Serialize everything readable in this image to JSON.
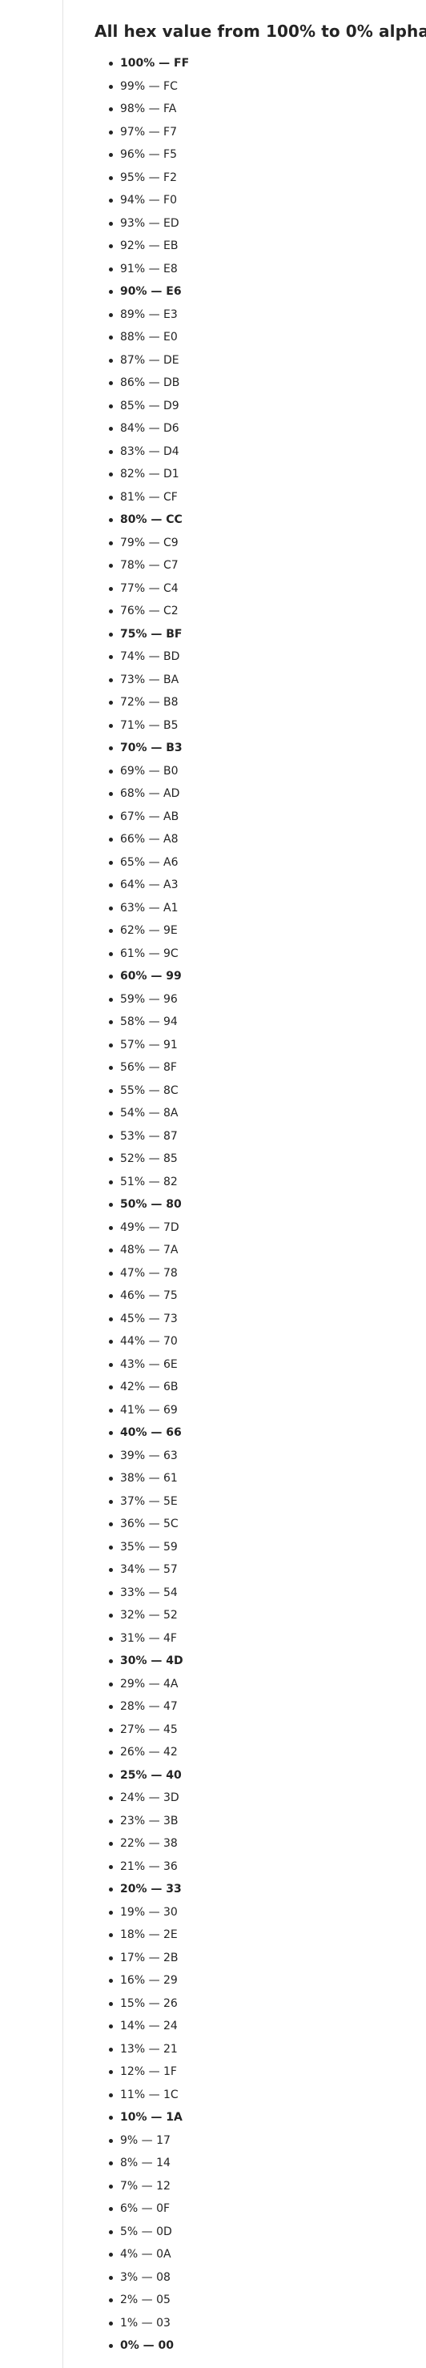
{
  "title": "All hex value from 100% to 0% alpha:",
  "items": [
    {
      "text": "100% — FF",
      "bold": true
    },
    {
      "text": "99% — FC",
      "bold": false
    },
    {
      "text": "98% — FA",
      "bold": false
    },
    {
      "text": "97% — F7",
      "bold": false
    },
    {
      "text": "96% — F5",
      "bold": false
    },
    {
      "text": "95% — F2",
      "bold": false
    },
    {
      "text": "94% — F0",
      "bold": false
    },
    {
      "text": "93% — ED",
      "bold": false
    },
    {
      "text": "92% — EB",
      "bold": false
    },
    {
      "text": "91% — E8",
      "bold": false
    },
    {
      "text": "90% — E6",
      "bold": true
    },
    {
      "text": "89% — E3",
      "bold": false
    },
    {
      "text": "88% — E0",
      "bold": false
    },
    {
      "text": "87% — DE",
      "bold": false
    },
    {
      "text": "86% — DB",
      "bold": false
    },
    {
      "text": "85% — D9",
      "bold": false
    },
    {
      "text": "84% — D6",
      "bold": false
    },
    {
      "text": "83% — D4",
      "bold": false
    },
    {
      "text": "82% — D1",
      "bold": false
    },
    {
      "text": "81% — CF",
      "bold": false
    },
    {
      "text": "80% — CC",
      "bold": true
    },
    {
      "text": "79% — C9",
      "bold": false
    },
    {
      "text": "78% — C7",
      "bold": false
    },
    {
      "text": "77% — C4",
      "bold": false
    },
    {
      "text": "76% — C2",
      "bold": false
    },
    {
      "text": "75% — BF",
      "bold": true
    },
    {
      "text": "74% — BD",
      "bold": false
    },
    {
      "text": "73% — BA",
      "bold": false
    },
    {
      "text": "72% — B8",
      "bold": false
    },
    {
      "text": "71% — B5",
      "bold": false
    },
    {
      "text": "70% — B3",
      "bold": true
    },
    {
      "text": "69% — B0",
      "bold": false
    },
    {
      "text": "68% — AD",
      "bold": false
    },
    {
      "text": "67% — AB",
      "bold": false
    },
    {
      "text": "66% — A8",
      "bold": false
    },
    {
      "text": "65% — A6",
      "bold": false
    },
    {
      "text": "64% — A3",
      "bold": false
    },
    {
      "text": "63% — A1",
      "bold": false
    },
    {
      "text": "62% — 9E",
      "bold": false
    },
    {
      "text": "61% — 9C",
      "bold": false
    },
    {
      "text": "60% — 99",
      "bold": true
    },
    {
      "text": "59% — 96",
      "bold": false
    },
    {
      "text": "58% — 94",
      "bold": false
    },
    {
      "text": "57% — 91",
      "bold": false
    },
    {
      "text": "56% — 8F",
      "bold": false
    },
    {
      "text": "55% — 8C",
      "bold": false
    },
    {
      "text": "54% — 8A",
      "bold": false
    },
    {
      "text": "53% — 87",
      "bold": false
    },
    {
      "text": "52% — 85",
      "bold": false
    },
    {
      "text": "51% — 82",
      "bold": false
    },
    {
      "text": "50% — 80",
      "bold": true
    },
    {
      "text": "49% — 7D",
      "bold": false
    },
    {
      "text": "48% — 7A",
      "bold": false
    },
    {
      "text": "47% — 78",
      "bold": false
    },
    {
      "text": "46% — 75",
      "bold": false
    },
    {
      "text": "45% — 73",
      "bold": false
    },
    {
      "text": "44% — 70",
      "bold": false
    },
    {
      "text": "43% — 6E",
      "bold": false
    },
    {
      "text": "42% — 6B",
      "bold": false
    },
    {
      "text": "41% — 69",
      "bold": false
    },
    {
      "text": "40% — 66",
      "bold": true
    },
    {
      "text": "39% — 63",
      "bold": false
    },
    {
      "text": "38% — 61",
      "bold": false
    },
    {
      "text": "37% — 5E",
      "bold": false
    },
    {
      "text": "36% — 5C",
      "bold": false
    },
    {
      "text": "35% — 59",
      "bold": false
    },
    {
      "text": "34% — 57",
      "bold": false
    },
    {
      "text": "33% — 54",
      "bold": false
    },
    {
      "text": "32% — 52",
      "bold": false
    },
    {
      "text": "31% — 4F",
      "bold": false
    },
    {
      "text": "30% — 4D",
      "bold": true
    },
    {
      "text": "29% — 4A",
      "bold": false
    },
    {
      "text": "28% — 47",
      "bold": false
    },
    {
      "text": "27% — 45",
      "bold": false
    },
    {
      "text": "26% — 42",
      "bold": false
    },
    {
      "text": "25% — 40",
      "bold": true
    },
    {
      "text": "24% — 3D",
      "bold": false
    },
    {
      "text": "23% — 3B",
      "bold": false
    },
    {
      "text": "22% — 38",
      "bold": false
    },
    {
      "text": "21% — 36",
      "bold": false
    },
    {
      "text": "20% — 33",
      "bold": true
    },
    {
      "text": "19% — 30",
      "bold": false
    },
    {
      "text": "18% — 2E",
      "bold": false
    },
    {
      "text": "17% — 2B",
      "bold": false
    },
    {
      "text": "16% — 29",
      "bold": false
    },
    {
      "text": "15% — 26",
      "bold": false
    },
    {
      "text": "14% — 24",
      "bold": false
    },
    {
      "text": "13% — 21",
      "bold": false
    },
    {
      "text": "12% — 1F",
      "bold": false
    },
    {
      "text": "11% — 1C",
      "bold": false
    },
    {
      "text": "10% — 1A",
      "bold": true
    },
    {
      "text": "9% — 17",
      "bold": false
    },
    {
      "text": "8% — 14",
      "bold": false
    },
    {
      "text": "7% — 12",
      "bold": false
    },
    {
      "text": "6% — 0F",
      "bold": false
    },
    {
      "text": "5% — 0D",
      "bold": false
    },
    {
      "text": "4% — 0A",
      "bold": false
    },
    {
      "text": "3% — 08",
      "bold": false
    },
    {
      "text": "2% — 05",
      "bold": false
    },
    {
      "text": "1% — 03",
      "bold": false
    },
    {
      "text": "0% — 00",
      "bold": true
    }
  ]
}
